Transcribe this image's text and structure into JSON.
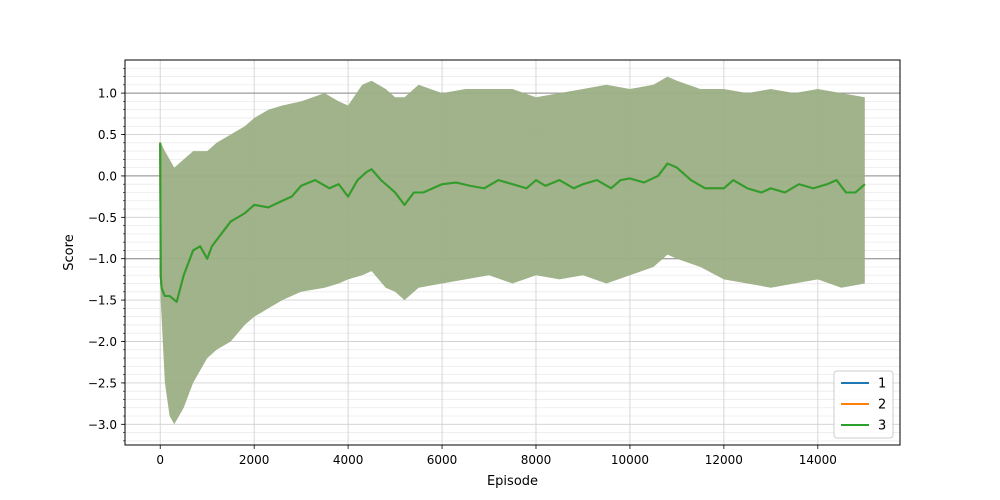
{
  "chart_data": {
    "type": "line",
    "xlabel": "Episode",
    "ylabel": "Score",
    "xlim": [
      -750,
      15750
    ],
    "ylim": [
      -3.25,
      1.4
    ],
    "xticks": [
      0,
      2000,
      4000,
      6000,
      8000,
      10000,
      12000,
      14000
    ],
    "xtick_labels": [
      "0",
      "2000",
      "4000",
      "6000",
      "8000",
      "10000",
      "12000",
      "14000"
    ],
    "yticks": [
      -3.0,
      -2.5,
      -2.0,
      -1.5,
      -1.0,
      -0.5,
      0.0,
      0.5,
      1.0
    ],
    "ytick_labels": [
      "−3.0",
      "−2.5",
      "−2.0",
      "−1.5",
      "−1.0",
      "−0.5",
      "0.0",
      "0.5",
      "1.0"
    ],
    "reference_lines_y": [
      -1.0,
      0.0,
      1.0
    ],
    "grid": true,
    "legend": {
      "placement": "lower-right",
      "entries": [
        "1",
        "2",
        "3"
      ]
    },
    "series": [
      {
        "name": "1",
        "color": "#1f77b4",
        "x": [
          0,
          10,
          30,
          60,
          100,
          200,
          350,
          500,
          700,
          850,
          1000,
          1100,
          1300,
          1500,
          1800,
          2000,
          2300,
          2600,
          2800,
          3000,
          3300,
          3600,
          3800,
          4000,
          4200,
          4400,
          4500,
          4700,
          4900,
          5000,
          5200,
          5400,
          5600,
          5800,
          6000,
          6300,
          6600,
          6900,
          7200,
          7500,
          7800,
          8000,
          8200,
          8500,
          8800,
          9000,
          9300,
          9600,
          9800,
          10000,
          10300,
          10600,
          10800,
          11000,
          11300,
          11600,
          12000,
          12200,
          12500,
          12800,
          13000,
          13300,
          13600,
          13900,
          14200,
          14400,
          14600,
          14800,
          15000
        ],
        "y": [
          0.4,
          -1.2,
          -1.35,
          -1.4,
          -1.45,
          -1.45,
          -1.52,
          -1.2,
          -0.9,
          -0.85,
          -1.0,
          -0.85,
          -0.7,
          -0.55,
          -0.45,
          -0.35,
          -0.38,
          -0.3,
          -0.25,
          -0.12,
          -0.05,
          -0.15,
          -0.1,
          -0.25,
          -0.05,
          0.05,
          0.08,
          -0.05,
          -0.15,
          -0.2,
          -0.35,
          -0.2,
          -0.2,
          -0.15,
          -0.1,
          -0.08,
          -0.12,
          -0.15,
          -0.05,
          -0.1,
          -0.15,
          -0.05,
          -0.12,
          -0.05,
          -0.15,
          -0.1,
          -0.05,
          -0.15,
          -0.05,
          -0.03,
          -0.08,
          0.0,
          0.15,
          0.1,
          -0.05,
          -0.15,
          -0.15,
          -0.05,
          -0.15,
          -0.2,
          -0.15,
          -0.2,
          -0.1,
          -0.15,
          -0.1,
          -0.05,
          -0.2,
          -0.2,
          -0.1
        ]
      },
      {
        "name": "2",
        "color": "#ff7f0e",
        "x": [
          0,
          10,
          30,
          60,
          100,
          200,
          350,
          500,
          700,
          850,
          1000,
          1100,
          1300,
          1500,
          1800,
          2000,
          2300,
          2600,
          2800,
          3000,
          3300,
          3600,
          3800,
          4000,
          4200,
          4400,
          4500,
          4700,
          4900,
          5000,
          5200,
          5400,
          5600,
          5800,
          6000,
          6300,
          6600,
          6900,
          7200,
          7500,
          7800,
          8000,
          8200,
          8500,
          8800,
          9000,
          9300,
          9600,
          9800,
          10000,
          10300,
          10600,
          10800,
          11000,
          11300,
          11600,
          12000,
          12200,
          12500,
          12800,
          13000,
          13300,
          13600,
          13900,
          14200,
          14400,
          14600,
          14800,
          15000
        ],
        "y": [
          0.4,
          -1.2,
          -1.35,
          -1.4,
          -1.45,
          -1.45,
          -1.52,
          -1.2,
          -0.9,
          -0.85,
          -1.0,
          -0.85,
          -0.7,
          -0.55,
          -0.45,
          -0.35,
          -0.38,
          -0.3,
          -0.25,
          -0.12,
          -0.05,
          -0.15,
          -0.1,
          -0.25,
          -0.05,
          0.05,
          0.08,
          -0.05,
          -0.15,
          -0.2,
          -0.35,
          -0.2,
          -0.2,
          -0.15,
          -0.1,
          -0.08,
          -0.12,
          -0.15,
          -0.05,
          -0.1,
          -0.15,
          -0.05,
          -0.12,
          -0.05,
          -0.15,
          -0.1,
          -0.05,
          -0.15,
          -0.05,
          -0.03,
          -0.08,
          0.0,
          0.15,
          0.1,
          -0.05,
          -0.15,
          -0.15,
          -0.05,
          -0.15,
          -0.2,
          -0.15,
          -0.2,
          -0.1,
          -0.15,
          -0.1,
          -0.05,
          -0.2,
          -0.2,
          -0.1
        ]
      },
      {
        "name": "3",
        "color": "#2ca02c",
        "x": [
          0,
          10,
          30,
          60,
          100,
          200,
          350,
          500,
          700,
          850,
          1000,
          1100,
          1300,
          1500,
          1800,
          2000,
          2300,
          2600,
          2800,
          3000,
          3300,
          3600,
          3800,
          4000,
          4200,
          4400,
          4500,
          4700,
          4900,
          5000,
          5200,
          5400,
          5600,
          5800,
          6000,
          6300,
          6600,
          6900,
          7200,
          7500,
          7800,
          8000,
          8200,
          8500,
          8800,
          9000,
          9300,
          9600,
          9800,
          10000,
          10300,
          10600,
          10800,
          11000,
          11300,
          11600,
          12000,
          12200,
          12500,
          12800,
          13000,
          13300,
          13600,
          13900,
          14200,
          14400,
          14600,
          14800,
          15000
        ],
        "y": [
          0.4,
          -1.2,
          -1.35,
          -1.4,
          -1.45,
          -1.45,
          -1.52,
          -1.2,
          -0.9,
          -0.85,
          -1.0,
          -0.85,
          -0.7,
          -0.55,
          -0.45,
          -0.35,
          -0.38,
          -0.3,
          -0.25,
          -0.12,
          -0.05,
          -0.15,
          -0.1,
          -0.25,
          -0.05,
          0.05,
          0.08,
          -0.05,
          -0.15,
          -0.2,
          -0.35,
          -0.2,
          -0.2,
          -0.15,
          -0.1,
          -0.08,
          -0.12,
          -0.15,
          -0.05,
          -0.1,
          -0.15,
          -0.05,
          -0.12,
          -0.05,
          -0.15,
          -0.1,
          -0.05,
          -0.15,
          -0.05,
          -0.03,
          -0.08,
          0.0,
          0.15,
          0.1,
          -0.05,
          -0.15,
          -0.15,
          -0.05,
          -0.15,
          -0.2,
          -0.15,
          -0.2,
          -0.1,
          -0.15,
          -0.1,
          -0.05,
          -0.2,
          -0.2,
          -0.1
        ]
      }
    ],
    "band": {
      "color": "#9caf84",
      "x": [
        0,
        10,
        100,
        200,
        300,
        500,
        700,
        1000,
        1200,
        1500,
        1800,
        2000,
        2300,
        2600,
        3000,
        3500,
        3800,
        4000,
        4300,
        4500,
        4800,
        5000,
        5200,
        5500,
        6000,
        6500,
        7000,
        7500,
        8000,
        8500,
        9000,
        9500,
        10000,
        10500,
        10800,
        11000,
        11500,
        12000,
        12500,
        13000,
        13500,
        14000,
        14500,
        15000
      ],
      "upper": [
        0.4,
        0.4,
        0.3,
        0.2,
        0.1,
        0.2,
        0.3,
        0.3,
        0.4,
        0.5,
        0.6,
        0.7,
        0.8,
        0.85,
        0.9,
        1.0,
        0.9,
        0.85,
        1.1,
        1.15,
        1.05,
        0.95,
        0.95,
        1.1,
        1.0,
        1.05,
        1.05,
        1.05,
        0.95,
        1.0,
        1.05,
        1.1,
        1.05,
        1.1,
        1.2,
        1.15,
        1.05,
        1.05,
        1.0,
        1.05,
        1.0,
        1.05,
        1.0,
        0.95
      ],
      "lower": [
        0.0,
        -1.5,
        -2.5,
        -2.9,
        -3.0,
        -2.8,
        -2.5,
        -2.2,
        -2.1,
        -2.0,
        -1.8,
        -1.7,
        -1.6,
        -1.5,
        -1.4,
        -1.35,
        -1.3,
        -1.25,
        -1.2,
        -1.15,
        -1.35,
        -1.4,
        -1.5,
        -1.35,
        -1.3,
        -1.25,
        -1.2,
        -1.3,
        -1.2,
        -1.25,
        -1.2,
        -1.3,
        -1.2,
        -1.1,
        -0.95,
        -1.0,
        -1.1,
        -1.25,
        -1.3,
        -1.35,
        -1.3,
        -1.25,
        -1.35,
        -1.3
      ]
    }
  }
}
